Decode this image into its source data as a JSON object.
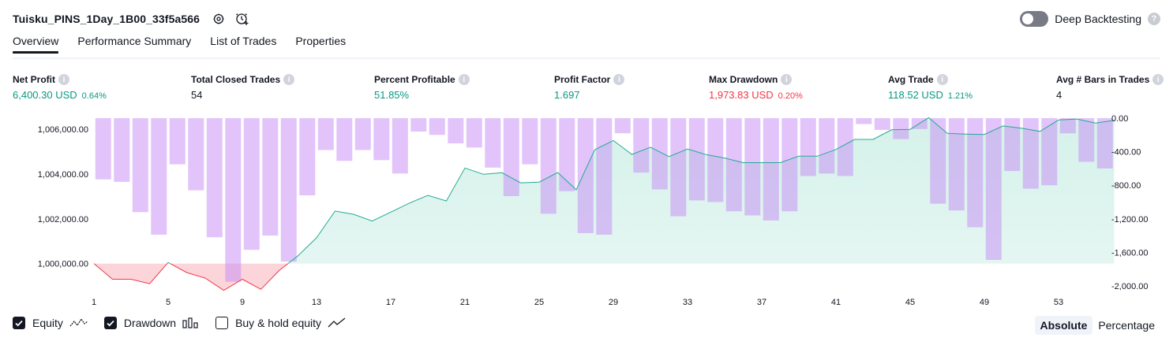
{
  "header": {
    "title": "Tuisku_PINS_1Day_1B00_33f5a566",
    "deep_backtesting_label": "Deep Backtesting"
  },
  "tabs": [
    {
      "label": "Overview"
    },
    {
      "label": "Performance Summary"
    },
    {
      "label": "List of Trades"
    },
    {
      "label": "Properties"
    }
  ],
  "metrics": [
    {
      "label": "Net Profit",
      "value": "6,400.30 USD",
      "pct": "0.64%",
      "color": "green"
    },
    {
      "label": "Total Closed Trades",
      "value": "54",
      "pct": "",
      "color": "dark"
    },
    {
      "label": "Percent Profitable",
      "value": "51.85%",
      "pct": "",
      "color": "green"
    },
    {
      "label": "Profit Factor",
      "value": "1.697",
      "pct": "",
      "color": "green"
    },
    {
      "label": "Max Drawdown",
      "value": "1,973.83 USD",
      "pct": "0.20%",
      "color": "red"
    },
    {
      "label": "Avg Trade",
      "value": "118.52 USD",
      "pct": "1.21%",
      "color": "green"
    },
    {
      "label": "Avg # Bars in Trades",
      "value": "4",
      "pct": "",
      "color": "dark"
    }
  ],
  "legend": {
    "equity_label": "Equity",
    "drawdown_label": "Drawdown",
    "buyhold_label": "Buy & hold equity",
    "equity_checked": true,
    "drawdown_checked": true,
    "buyhold_checked": false
  },
  "modes": {
    "absolute_label": "Absolute",
    "percentage_label": "Percentage",
    "active": "Absolute"
  },
  "colors": {
    "equity_line": "#22ab94",
    "equity_fill": "#d5f1ea",
    "below_initial_line": "#f23645",
    "below_initial_fill": "#fbd5da",
    "drawdown_bar": "#e1c6fb",
    "drawdown_bar_overlap": "#b9b8ec"
  },
  "chart_data": {
    "type": "area",
    "x_ticks": [
      "1",
      "5",
      "9",
      "13",
      "17",
      "21",
      "25",
      "29",
      "33",
      "37",
      "41",
      "45",
      "49",
      "53"
    ],
    "left_axis": {
      "ticks": [
        "1,000,000.00",
        "1,002,000.00",
        "1,004,000.00",
        "1,006,000.00"
      ],
      "ylim": [
        999000,
        1006500
      ],
      "initial_capital": 1000000
    },
    "right_axis": {
      "ticks": [
        "0.00",
        "-400.00",
        "-800.00",
        "-1,200.00",
        "-1,600.00",
        "-2,000.00"
      ],
      "ylim": [
        -2000,
        0
      ]
    },
    "series": [
      {
        "name": "Equity",
        "values": [
          1000000,
          999300,
          999300,
          999100,
          1000050,
          999600,
          999350,
          998800,
          999300,
          998850,
          999700,
          1000350,
          1001150,
          1002350,
          1002200,
          1001900,
          1002300,
          1002700,
          1003050,
          1002800,
          1004270,
          1003990,
          1004060,
          1003610,
          1003640,
          1004070,
          1003300,
          1005090,
          1005500,
          1004880,
          1005200,
          1004780,
          1005120,
          1004870,
          1004720,
          1004510,
          1004510,
          1004510,
          1004800,
          1004800,
          1005100,
          1005550,
          1005550,
          1005980,
          1006000,
          1006520,
          1005820,
          1005790,
          1005770,
          1006150,
          1006050,
          1005910,
          1006420,
          1006460,
          1006280,
          1006400
        ]
      },
      {
        "name": "Drawdown",
        "values": [
          -730,
          -760,
          -1120,
          -1390,
          -550,
          -860,
          -1420,
          -1950,
          -1570,
          -1400,
          -1710,
          -920,
          -380,
          -510,
          -380,
          -500,
          -660,
          -160,
          -200,
          -300,
          -350,
          -590,
          -930,
          -550,
          -1140,
          -870,
          -1370,
          -1390,
          -180,
          -650,
          -850,
          -1170,
          -980,
          -1000,
          -1110,
          -1160,
          -1220,
          -1110,
          -690,
          -660,
          -690,
          -70,
          -140,
          -250,
          -130,
          -1020,
          -1100,
          -1300,
          -1690,
          -630,
          -840,
          -800,
          -180,
          -520,
          -600
        ]
      }
    ]
  }
}
